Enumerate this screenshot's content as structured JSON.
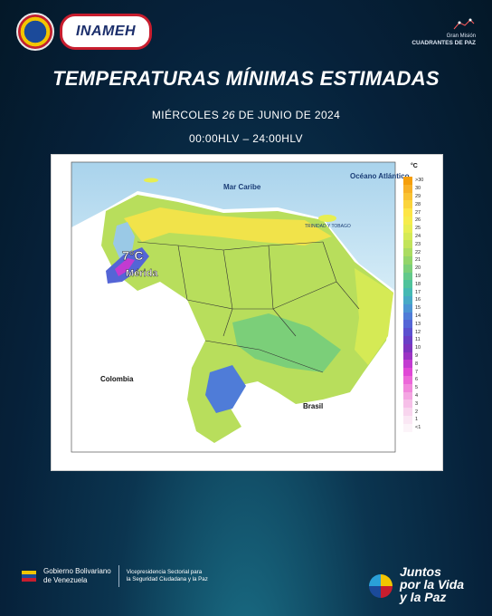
{
  "header": {
    "org_logo_text": "INAMEH",
    "right_logo_line1": "Gran Misión",
    "right_logo_line2": "CUADRANTES DE PAZ"
  },
  "title": "TEMPERATURAS MÍNIMAS ESTIMADAS",
  "date": {
    "prefix": "MIÉRCOLES ",
    "day": "26",
    "suffix": " DE JUNIO DE 2024"
  },
  "hours": "00:00HLV – 24:00HLV",
  "map": {
    "labels": {
      "sea": "Mar Caribe",
      "ocean": "Océano Atlántico",
      "colombia": "Colombia",
      "brasil": "Brasil",
      "min_temp": "7°C",
      "city": "Mérida",
      "trinidad": "TRINIDAD Y TOBAGO"
    },
    "legend_unit": "°C",
    "legend": [
      {
        "label": ">30",
        "color": "#f59e0b"
      },
      {
        "label": "30",
        "color": "#f7b026"
      },
      {
        "label": "29",
        "color": "#f9c233"
      },
      {
        "label": "28",
        "color": "#fbd43b"
      },
      {
        "label": "27",
        "color": "#fde546"
      },
      {
        "label": "26",
        "color": "#f6ec4c"
      },
      {
        "label": "25",
        "color": "#e7ee52"
      },
      {
        "label": "24",
        "color": "#d5ea55"
      },
      {
        "label": "23",
        "color": "#c2e45a"
      },
      {
        "label": "22",
        "color": "#abdc61"
      },
      {
        "label": "21",
        "color": "#93d56a"
      },
      {
        "label": "20",
        "color": "#7bcf79"
      },
      {
        "label": "19",
        "color": "#63c98b"
      },
      {
        "label": "18",
        "color": "#4fc39c"
      },
      {
        "label": "17",
        "color": "#45b9b3"
      },
      {
        "label": "16",
        "color": "#47a9c6"
      },
      {
        "label": "15",
        "color": "#4b94d3"
      },
      {
        "label": "14",
        "color": "#4f7cd8"
      },
      {
        "label": "13",
        "color": "#5465d6"
      },
      {
        "label": "12",
        "color": "#5b50cf"
      },
      {
        "label": "11",
        "color": "#6a3fc6"
      },
      {
        "label": "10",
        "color": "#7d34bf"
      },
      {
        "label": "9",
        "color": "#9b33c4"
      },
      {
        "label": "8",
        "color": "#c23bd1"
      },
      {
        "label": "7",
        "color": "#e047d6"
      },
      {
        "label": "6",
        "color": "#ec67d9"
      },
      {
        "label": "5",
        "color": "#f187dc"
      },
      {
        "label": "4",
        "color": "#f4a5e2"
      },
      {
        "label": "3",
        "color": "#f6bfe8"
      },
      {
        "label": "2",
        "color": "#f8d5ee"
      },
      {
        "label": "1",
        "color": "#fae7f4"
      },
      {
        "label": "<1",
        "color": "#fcf4f9"
      }
    ]
  },
  "footer": {
    "gov_line1": "Gobierno Bolivariano",
    "gov_line2": "de Venezuela",
    "vice_line1": "Vicepresidencia Sectorial para",
    "vice_line2": "la Seguridad Ciudadana y la Paz",
    "slogan_line1": "Juntos",
    "slogan_line2": "por la Vida",
    "slogan_line3": "y la Paz"
  }
}
